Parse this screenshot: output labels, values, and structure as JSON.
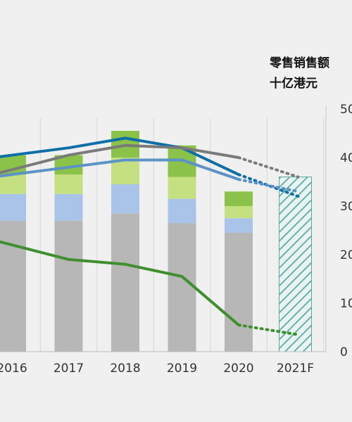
{
  "chart_data": {
    "type": "bar",
    "unit_label_line1": "零售销售额",
    "unit_label_line2": "十亿港元",
    "categories": [
      "2016",
      "2017",
      "2018",
      "2019",
      "2020",
      "2021F"
    ],
    "y_ticks": [
      "0",
      "10",
      "20",
      "30",
      "40",
      "50"
    ],
    "ylim": [
      0,
      50
    ],
    "grid": false,
    "bar_series": [
      {
        "color": "#b7b7b7",
        "values": [
          27,
          27,
          28.5,
          26.5,
          24.5,
          0
        ]
      },
      {
        "color": "#aac3e8",
        "values": [
          5.5,
          5.5,
          6,
          5,
          3,
          0
        ]
      },
      {
        "color": "#c5e080",
        "values": [
          4,
          4,
          5.5,
          4.5,
          2.5,
          0
        ]
      },
      {
        "color": "#8bc34a",
        "values": [
          4,
          4,
          5.5,
          6.5,
          3,
          0
        ]
      }
    ],
    "forecast_bar": {
      "category": "2021F",
      "value": 36,
      "color": "#5aa8a0",
      "pattern": "hatched"
    },
    "line_series": [
      {
        "color": "#0e6ea8",
        "values": [
          40.5,
          42,
          44,
          42,
          36.5
        ],
        "forecast": 32
      },
      {
        "color": "#7a7a7a",
        "values": [
          37.5,
          40.5,
          42.5,
          42,
          40
        ],
        "forecast": 36
      },
      {
        "color": "#5b93c7",
        "values": [
          36.5,
          38,
          39.5,
          39.5,
          35.5
        ],
        "forecast": 33
      },
      {
        "color": "#3f8f2f",
        "values": [
          22,
          19,
          18,
          15.5,
          5.5
        ],
        "forecast": 3.5
      }
    ]
  }
}
